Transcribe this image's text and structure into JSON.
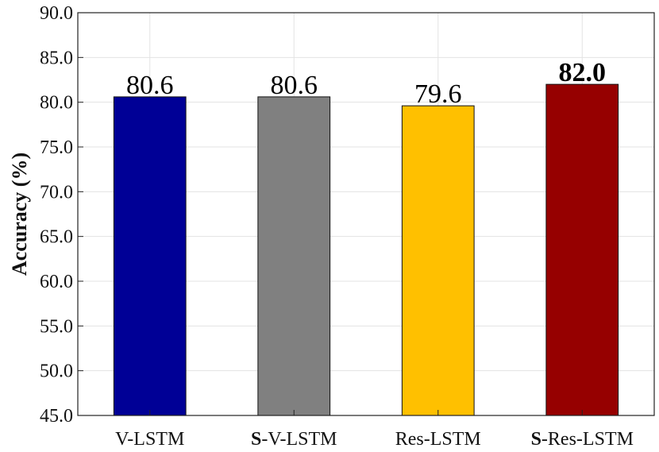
{
  "chart_data": {
    "type": "bar",
    "ylabel": "Accuracy (%)",
    "ylim": [
      45.0,
      90.0
    ],
    "yticks": [
      "45.0",
      "50.0",
      "55.0",
      "60.0",
      "65.0",
      "70.0",
      "75.0",
      "80.0",
      "85.0",
      "90.0"
    ],
    "grid": true,
    "categories": [
      {
        "prefix": "",
        "text": "V-LSTM"
      },
      {
        "prefix": "S",
        "text": "-V-LSTM"
      },
      {
        "prefix": "",
        "text": "Res-LSTM"
      },
      {
        "prefix": "S",
        "text": "-Res-LSTM"
      }
    ],
    "values": [
      80.6,
      80.6,
      79.6,
      82.0
    ],
    "value_labels": [
      "80.6",
      "80.6",
      "79.6",
      "82.0"
    ],
    "value_label_bold": [
      false,
      false,
      false,
      true
    ],
    "colors": [
      "#000096",
      "#808080",
      "#ffc000",
      "#960000"
    ]
  }
}
